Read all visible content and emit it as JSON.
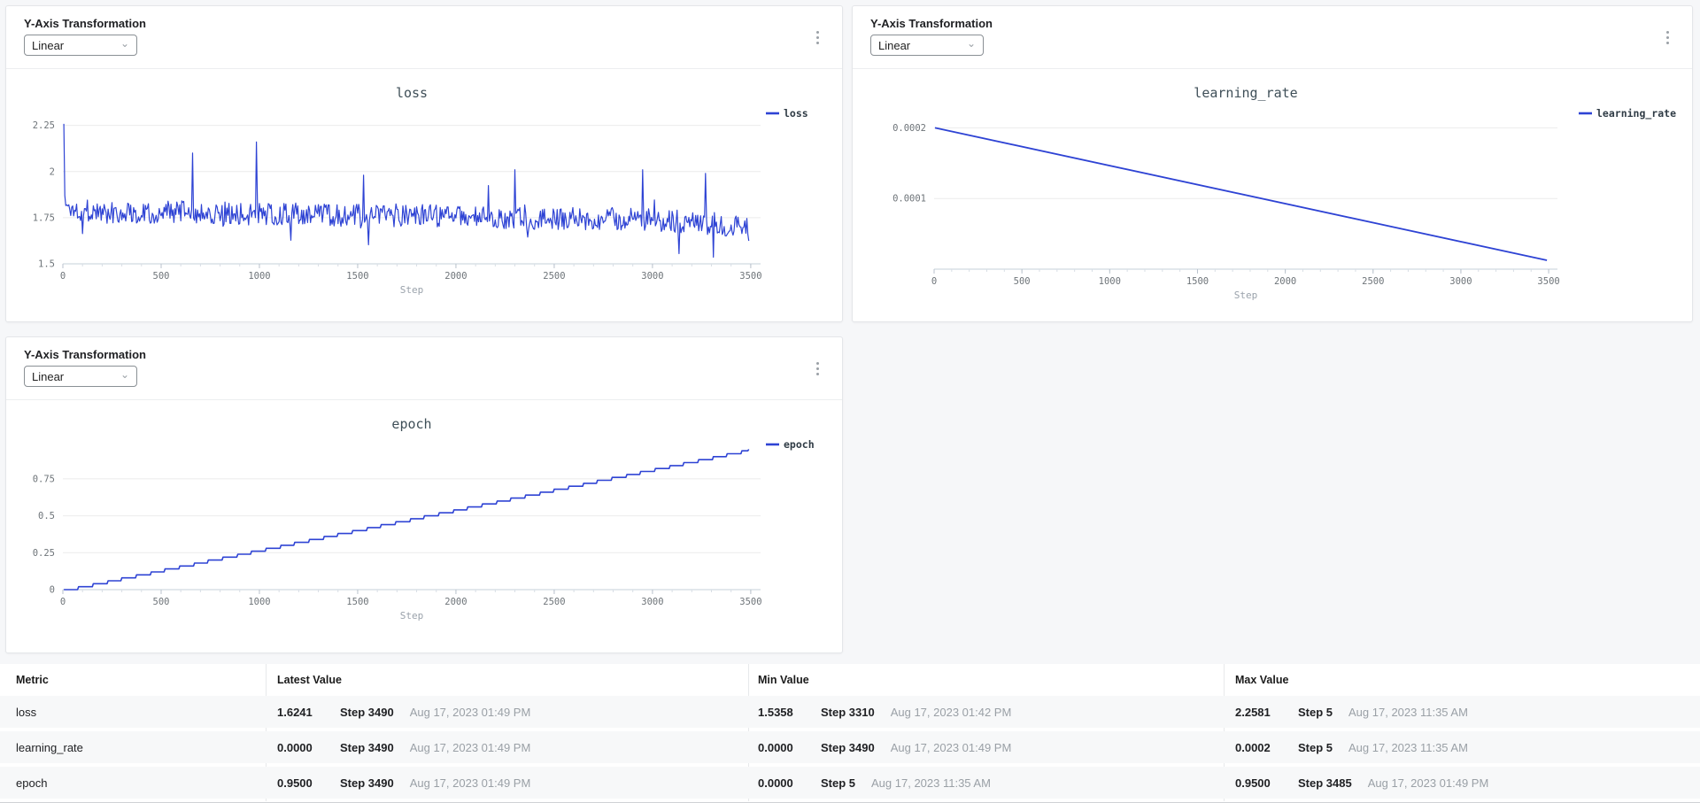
{
  "page": {
    "bg_color": "#f6f7f9",
    "card_bg": "#ffffff",
    "accent_line_color": "#2e43d4",
    "icons": {
      "more_options": "kebab-vertical-dots",
      "dropdown_chevron": "⌄"
    }
  },
  "cards": [
    {
      "control_label": "Y-Axis Transformation",
      "dropdown_value": "Linear"
    },
    {
      "control_label": "Y-Axis Transformation",
      "dropdown_value": "Linear"
    },
    {
      "control_label": "Y-Axis Transformation",
      "dropdown_value": "Linear"
    }
  ],
  "chart_data": [
    {
      "type": "line",
      "title": "loss",
      "legend": "loss",
      "color": "#2e43d4",
      "xlabel": "Step",
      "xlim": [
        0,
        3550
      ],
      "x_ticks": [
        0,
        500,
        1000,
        1500,
        2000,
        2500,
        3000,
        3500
      ],
      "x_minor_interval": 100,
      "ylim": [
        1.5,
        2.2866
      ],
      "y_ticks": [
        {
          "v": 1.5,
          "label": "1.5"
        },
        {
          "v": 1.75,
          "label": "1.75"
        },
        {
          "v": 2,
          "label": "2"
        },
        {
          "v": 2.25,
          "label": "2.25"
        }
      ],
      "series": {
        "kind": "noisy",
        "x_start": 5,
        "x_end": 3490,
        "x_step": 5,
        "seed": 1337,
        "noise_amp": 0.062,
        "spike_chance": 0.05,
        "spike_amp": 0.14,
        "clamp": [
          1.545,
          2.03
        ],
        "anchors": [
          [
            5,
            1.84
          ],
          [
            30,
            1.8
          ],
          [
            200,
            1.78
          ],
          [
            600,
            1.78
          ],
          [
            1000,
            1.77
          ],
          [
            1400,
            1.765
          ],
          [
            1800,
            1.76
          ],
          [
            2200,
            1.75
          ],
          [
            2600,
            1.745
          ],
          [
            3000,
            1.74
          ],
          [
            3300,
            1.72
          ],
          [
            3490,
            1.7
          ]
        ],
        "exact_points": [
          [
            5,
            2.2581
          ],
          [
            660,
            2.1
          ],
          [
            985,
            2.16
          ],
          [
            1530,
            1.98
          ],
          [
            2300,
            2.01
          ],
          [
            2950,
            2.01
          ],
          [
            3270,
            1.99
          ],
          [
            3310,
            1.5358
          ],
          [
            3490,
            1.6241
          ]
        ]
      },
      "stats": {
        "latest": 1.6241,
        "min": 1.5358,
        "max": 2.2581
      }
    },
    {
      "type": "line",
      "title": "learning_rate",
      "legend": "learning_rate",
      "color": "#2e43d4",
      "xlabel": "Step",
      "xlim": [
        0,
        3550
      ],
      "x_ticks": [
        0,
        500,
        1000,
        1500,
        2000,
        2500,
        3000,
        3500
      ],
      "x_minor_interval": 100,
      "ylim": [
        0,
        0.000213
      ],
      "y_ticks": [
        {
          "v": 0.0001,
          "label": "0.0001"
        },
        {
          "v": 0.0002,
          "label": "0.0002"
        }
      ],
      "series": {
        "kind": "points",
        "points": [
          [
            5,
            0.0002
          ],
          [
            3490,
            1.25e-05
          ]
        ]
      },
      "stats": {
        "latest": 0.0,
        "min": 0.0,
        "max": 0.0002
      }
    },
    {
      "type": "line",
      "title": "epoch",
      "legend": "epoch",
      "color": "#2e43d4",
      "xlabel": "Step",
      "xlim": [
        0,
        3550
      ],
      "x_ticks": [
        0,
        500,
        1000,
        1500,
        2000,
        2500,
        3000,
        3500
      ],
      "x_minor_interval": 100,
      "ylim": [
        0,
        0.995
      ],
      "y_ticks": [
        {
          "v": 0,
          "label": "0"
        },
        {
          "v": 0.25,
          "label": "0.25"
        },
        {
          "v": 0.5,
          "label": "0.5"
        },
        {
          "v": 0.75,
          "label": "0.75"
        }
      ],
      "series": {
        "kind": "stair",
        "x_start": 5,
        "x_end": 3490,
        "x_step": 5,
        "y_start": 0,
        "y_end": 0.95,
        "quantize": 0.02
      },
      "stats": {
        "latest": 0.95,
        "min": 0.0,
        "max": 0.95
      }
    }
  ],
  "table": {
    "headers": [
      "Metric",
      "Latest Value",
      "Min Value",
      "Max Value"
    ],
    "rows": [
      {
        "metric": "loss",
        "latest": {
          "value": "1.6241",
          "step": "Step 3490",
          "time": "Aug 17, 2023 01:49 PM"
        },
        "min": {
          "value": "1.5358",
          "step": "Step 3310",
          "time": "Aug 17, 2023 01:42 PM"
        },
        "max": {
          "value": "2.2581",
          "step": "Step 5",
          "time": "Aug 17, 2023 11:35 AM"
        }
      },
      {
        "metric": "learning_rate",
        "latest": {
          "value": "0.0000",
          "step": "Step 3490",
          "time": "Aug 17, 2023 01:49 PM"
        },
        "min": {
          "value": "0.0000",
          "step": "Step 3490",
          "time": "Aug 17, 2023 01:49 PM"
        },
        "max": {
          "value": "0.0002",
          "step": "Step 5",
          "time": "Aug 17, 2023 11:35 AM"
        }
      },
      {
        "metric": "epoch",
        "latest": {
          "value": "0.9500",
          "step": "Step 3490",
          "time": "Aug 17, 2023 01:49 PM"
        },
        "min": {
          "value": "0.0000",
          "step": "Step 5",
          "time": "Aug 17, 2023 11:35 AM"
        },
        "max": {
          "value": "0.9500",
          "step": "Step 3485",
          "time": "Aug 17, 2023 01:49 PM"
        }
      }
    ]
  }
}
